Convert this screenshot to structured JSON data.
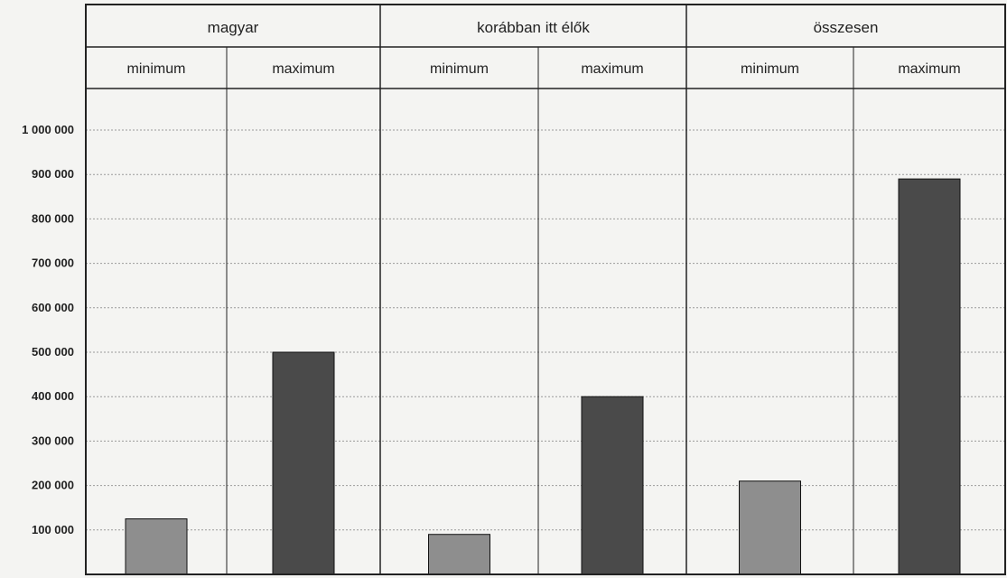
{
  "chart_data": {
    "type": "bar",
    "groups": [
      {
        "label": "magyar",
        "bars": [
          {
            "label": "minimum",
            "value": 125000,
            "kind": "min"
          },
          {
            "label": "maximum",
            "value": 500000,
            "kind": "max"
          }
        ]
      },
      {
        "label": "korábban itt élők",
        "bars": [
          {
            "label": "minimum",
            "value": 90000,
            "kind": "min"
          },
          {
            "label": "maximum",
            "value": 400000,
            "kind": "max"
          }
        ]
      },
      {
        "label": "összesen",
        "bars": [
          {
            "label": "minimum",
            "value": 210000,
            "kind": "min"
          },
          {
            "label": "maximum",
            "value": 890000,
            "kind": "max"
          }
        ]
      }
    ],
    "yticks": [
      {
        "value": 100000,
        "label": "100 000"
      },
      {
        "value": 200000,
        "label": "200 000"
      },
      {
        "value": 300000,
        "label": "300 000"
      },
      {
        "value": 400000,
        "label": "400 000"
      },
      {
        "value": 500000,
        "label": "500 000"
      },
      {
        "value": 600000,
        "label": "600 000"
      },
      {
        "value": 700000,
        "label": "700 000"
      },
      {
        "value": 800000,
        "label": "800 000"
      },
      {
        "value": 900000,
        "label": "900 000"
      },
      {
        "value": 1000000,
        "label": "1 000 000"
      }
    ],
    "ylim": [
      0,
      1000000
    ],
    "grid": true,
    "colors": {
      "min": "#8e8e8e",
      "max": "#4a4a4a",
      "frame": "#222222",
      "grid": "#9a9a9a"
    },
    "title": "",
    "xlabel": "",
    "ylabel": ""
  }
}
